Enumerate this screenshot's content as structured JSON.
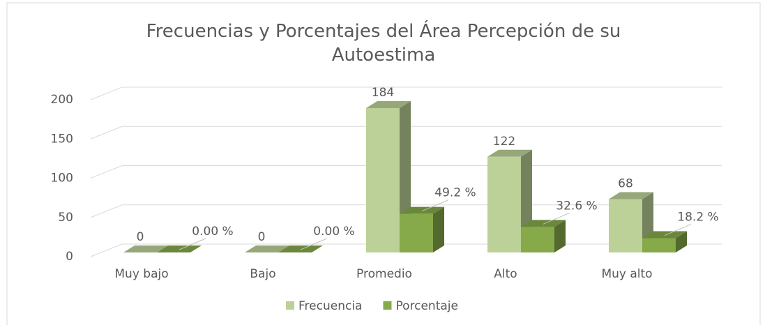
{
  "chart_data": {
    "type": "bar3d",
    "title": "Frecuencias y Porcentajes del Área Percepción de su Autoestima",
    "categories": [
      "Muy bajo",
      "Bajo",
      "Promedio",
      "Alto",
      "Muy alto"
    ],
    "series": [
      {
        "name": "Frecuencia",
        "color": "#bcd197",
        "values": [
          0,
          0,
          184,
          122,
          68
        ]
      },
      {
        "name": "Porcentaje",
        "color": "#86a94a",
        "values": [
          0,
          0,
          49.2,
          32.6,
          18.2
        ],
        "value_labels": [
          "0.00 %",
          "0.00 %",
          "49.2 %",
          "32.6 %",
          "18.2 %"
        ]
      }
    ],
    "ylim": [
      0,
      200
    ],
    "yticks": [
      0,
      50,
      100,
      150,
      200
    ],
    "grid": true,
    "legend": "bottom"
  }
}
